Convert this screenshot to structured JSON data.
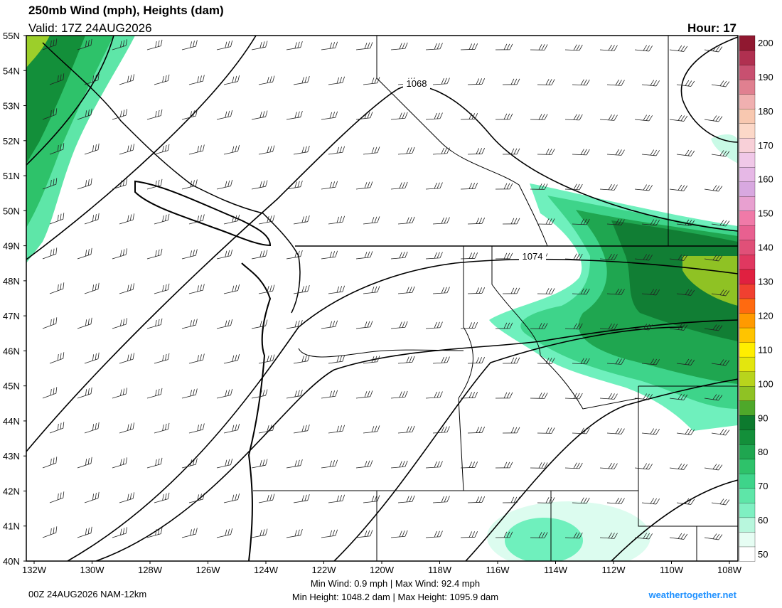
{
  "header": {
    "title": "250mb Wind (mph), Heights (dam)",
    "valid": "Valid: 17Z 24AUG2026",
    "hour": "Hour: 17"
  },
  "lat_labels": [
    "55N",
    "54N",
    "53N",
    "52N",
    "51N",
    "50N",
    "49N",
    "48N",
    "47N",
    "46N",
    "45N",
    "44N",
    "43N",
    "42N",
    "41N",
    "40N"
  ],
  "lon_labels": [
    "132W",
    "130W",
    "128W",
    "126W",
    "124W",
    "122W",
    "120W",
    "118W",
    "116W",
    "114W",
    "112W",
    "110W",
    "108W"
  ],
  "colorbar_labels": [
    "200",
    "190",
    "180",
    "170",
    "160",
    "150",
    "140",
    "130",
    "120",
    "110",
    "100",
    "90",
    "80",
    "70",
    "60",
    "50"
  ],
  "contour_labels": [
    "1068",
    "1074"
  ],
  "footer": {
    "run": "00Z 24AUG2026 NAM-12km",
    "wind": "Min Wind:   0.9 mph | Max Wind:  92.4 mph",
    "height": "Min Height: 1048.2 dam | Max Height: 1095.9 dam",
    "site": "weathertogether.net"
  }
}
